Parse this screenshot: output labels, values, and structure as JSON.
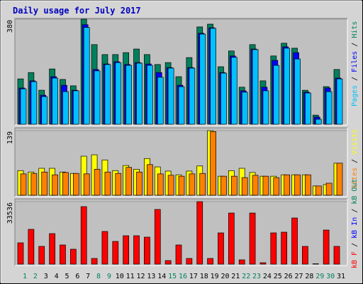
{
  "chart_data": [
    {
      "type": "bar",
      "title": "Daily usage for July 2017",
      "categories": [
        "1",
        "2",
        "3",
        "4",
        "5",
        "6",
        "7",
        "8",
        "9",
        "10",
        "11",
        "12",
        "13",
        "14",
        "15",
        "16",
        "17",
        "18",
        "19",
        "20",
        "21",
        "22",
        "23",
        "24",
        "25",
        "26",
        "27",
        "28",
        "29",
        "30",
        "31"
      ],
      "category_colors": [
        "#00805c",
        "#00805c",
        "#000000",
        "#000000",
        "#000000",
        "#000000",
        "#000000",
        "#00805c",
        "#00805c",
        "#000000",
        "#000000",
        "#000000",
        "#000000",
        "#000000",
        "#00805c",
        "#00805c",
        "#000000",
        "#000000",
        "#000000",
        "#000000",
        "#000000",
        "#00805c",
        "#00805c",
        "#000000",
        "#000000",
        "#000000",
        "#000000",
        "#000000",
        "#00805c",
        "#00805c",
        "#000000"
      ],
      "legend_separator": " / ",
      "ylim": [
        0,
        380
      ],
      "yticks": [
        380
      ],
      "series": [
        {
          "name": "Hits",
          "color": "#00805c",
          "values": [
            164,
            187,
            123,
            200,
            162,
            139,
            380,
            288,
            252,
            252,
            259,
            272,
            252,
            216,
            223,
            172,
            241,
            352,
            362,
            208,
            265,
            134,
            288,
            157,
            247,
            293,
            275,
            123,
            33,
            136,
            198
          ]
        },
        {
          "name": "Files",
          "color": "#0000ff",
          "values": [
            131,
            157,
            105,
            172,
            141,
            123,
            360,
            198,
            218,
            226,
            216,
            223,
            218,
            187,
            205,
            141,
            205,
            329,
            349,
            187,
            247,
            121,
            272,
            134,
            231,
            280,
            259,
            116,
            26,
            131,
            167
          ]
        },
        {
          "name": "Pages",
          "color": "#00c0ff",
          "values": [
            128,
            154,
            100,
            167,
            118,
            121,
            350,
            193,
            216,
            223,
            213,
            221,
            213,
            170,
            203,
            136,
            203,
            326,
            347,
            185,
            242,
            116,
            270,
            121,
            213,
            275,
            236,
            113,
            18,
            118,
            164
          ]
        }
      ]
    },
    {
      "type": "bar",
      "ylim": [
        0,
        139
      ],
      "yticks": [
        139
      ],
      "series": [
        {
          "name": "Visits",
          "color": "#ffff00",
          "values": [
            53,
            50,
            58,
            58,
            50,
            47,
            84,
            87,
            76,
            53,
            64,
            56,
            79,
            61,
            52,
            44,
            52,
            63,
            139,
            41,
            53,
            58,
            49,
            41,
            41,
            44,
            44,
            44,
            20,
            23,
            69
          ]
        },
        {
          "name": "Sites",
          "color": "#ff8000",
          "values": [
            46,
            47,
            50,
            44,
            49,
            47,
            46,
            56,
            50,
            47,
            60,
            50,
            66,
            46,
            43,
            41,
            46,
            47,
            137,
            41,
            41,
            38,
            43,
            41,
            38,
            44,
            44,
            44,
            20,
            26,
            69
          ]
        }
      ]
    },
    {
      "type": "bar",
      "ylim": [
        0,
        33536
      ],
      "yticks": [
        33536
      ],
      "series": [
        {
          "name": "kB F",
          "color": "#ff0000",
          "values": [
            11430,
            18670,
            9530,
            16380,
            10290,
            8000,
            30860,
            3050,
            17530,
            12190,
            15240,
            15240,
            14480,
            29340,
            1900,
            10290,
            3050,
            33536,
            3050,
            16770,
            27430,
            2290,
            27430,
            760,
            16770,
            17150,
            24770,
            9530,
            200,
            18290,
            9530
          ]
        }
      ],
      "legend_only": [
        {
          "name": "kB In",
          "color": "#0000ff"
        },
        {
          "name": "kB Out",
          "color": "#00805c"
        }
      ]
    }
  ]
}
